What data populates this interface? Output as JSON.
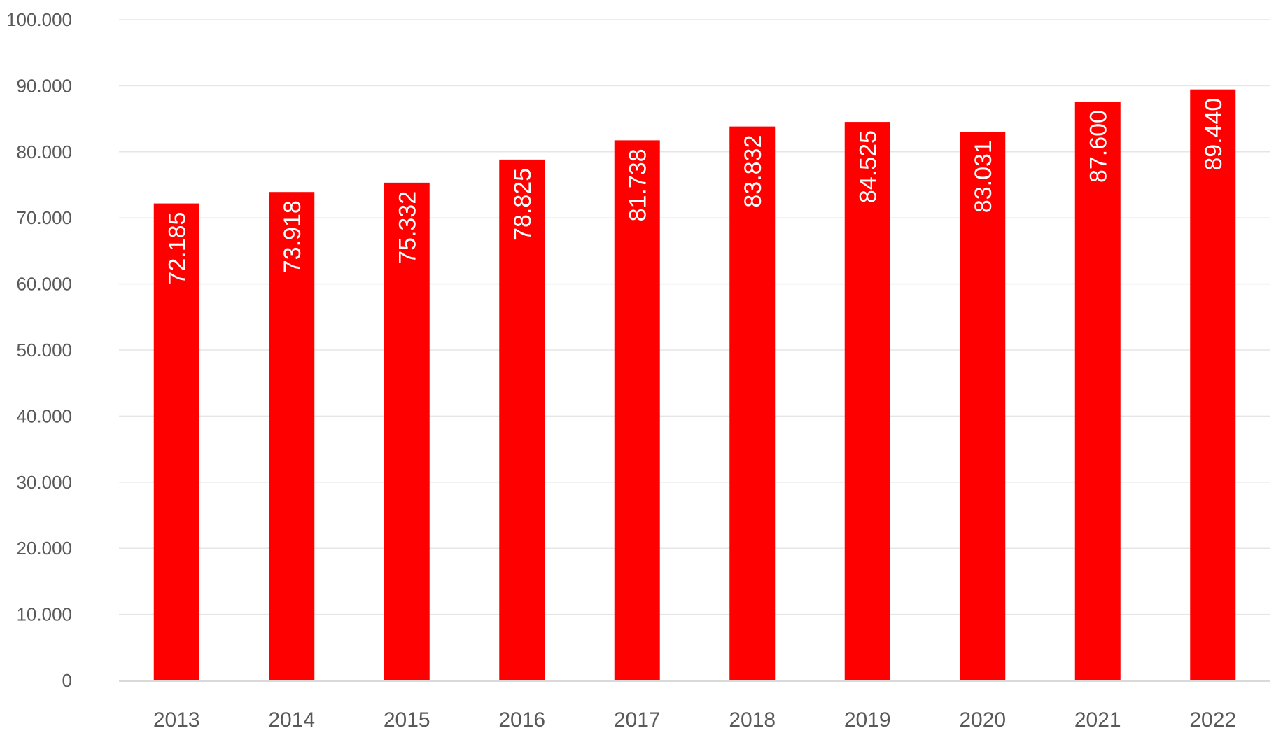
{
  "chart_data": {
    "type": "bar",
    "categories": [
      "2013",
      "2014",
      "2015",
      "2016",
      "2017",
      "2018",
      "2019",
      "2020",
      "2021",
      "2022"
    ],
    "values": [
      72185,
      73918,
      75332,
      78825,
      81738,
      83832,
      84525,
      83031,
      87600,
      89440
    ],
    "data_labels": [
      "72.185",
      "73.918",
      "75.332",
      "78.825",
      "81.738",
      "83.832",
      "84.525",
      "83.031",
      "87.600",
      "89.440"
    ],
    "y_ticks": [
      0,
      10000,
      20000,
      30000,
      40000,
      50000,
      60000,
      70000,
      80000,
      90000,
      100000
    ],
    "y_tick_labels": [
      "0",
      "10.000",
      "20.000",
      "30.000",
      "40.000",
      "50.000",
      "60.000",
      "70.000",
      "80.000",
      "90.000",
      "100.000"
    ],
    "ylim": [
      0,
      100000
    ],
    "title": "",
    "xlabel": "",
    "ylabel": "",
    "grid": true,
    "legend": "none",
    "colors": {
      "bar": "#ff0000",
      "grid": "#e6e6e6",
      "axis": "#d9d9d9",
      "tick_text": "#595959",
      "data_label_text": "#ffffff"
    }
  }
}
